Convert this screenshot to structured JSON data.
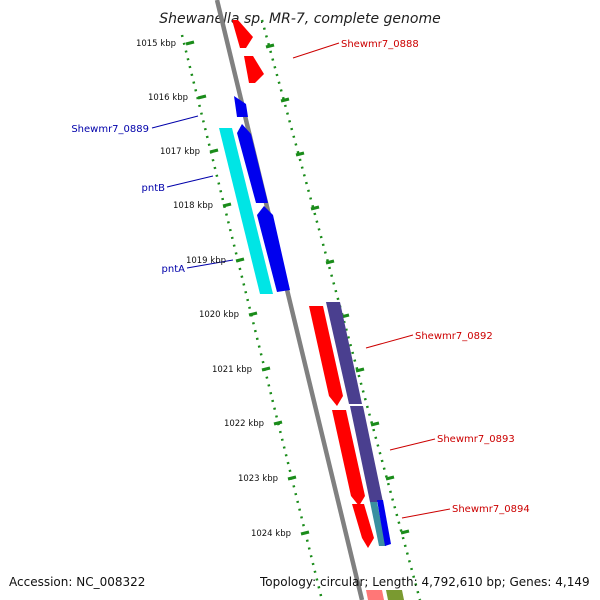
{
  "title": "Shewanella sp. MR-7, complete genome",
  "accession": "Accession: NC_008322",
  "topology": "Topology: circular; Length: 4,792,610 bp; Genes: 4,149",
  "kbp_labels": [
    "1015 kbp",
    "1016 kbp",
    "1017 kbp",
    "1018 kbp",
    "1019 kbp",
    "1020 kbp",
    "1021 kbp",
    "1022 kbp",
    "1023 kbp",
    "1024 kbp"
  ],
  "gene_labels": [
    {
      "text": "Shewmr7_0888",
      "color": "#cc0000"
    },
    {
      "text": "Shewmr7_0889",
      "color": "#0000aa"
    },
    {
      "text": "pntB",
      "color": "#0000aa"
    },
    {
      "text": "pntA",
      "color": "#0000aa"
    },
    {
      "text": "Shewmr7_0892",
      "color": "#cc0000"
    },
    {
      "text": "Shewmr7_0893",
      "color": "#cc0000"
    },
    {
      "text": "Shewmr7_0894",
      "color": "#cc0000"
    }
  ],
  "colors": {
    "backbone": "#808080",
    "ruler": "#1a8c1a",
    "forward_gene": "#ff0000",
    "reverse_gene": "#0000ee",
    "cds_cyan": "#00e5e5",
    "cds_purple": "#4a3f8f",
    "cds_teal": "#3a8fa0",
    "cds_olive": "#7a9a30"
  }
}
